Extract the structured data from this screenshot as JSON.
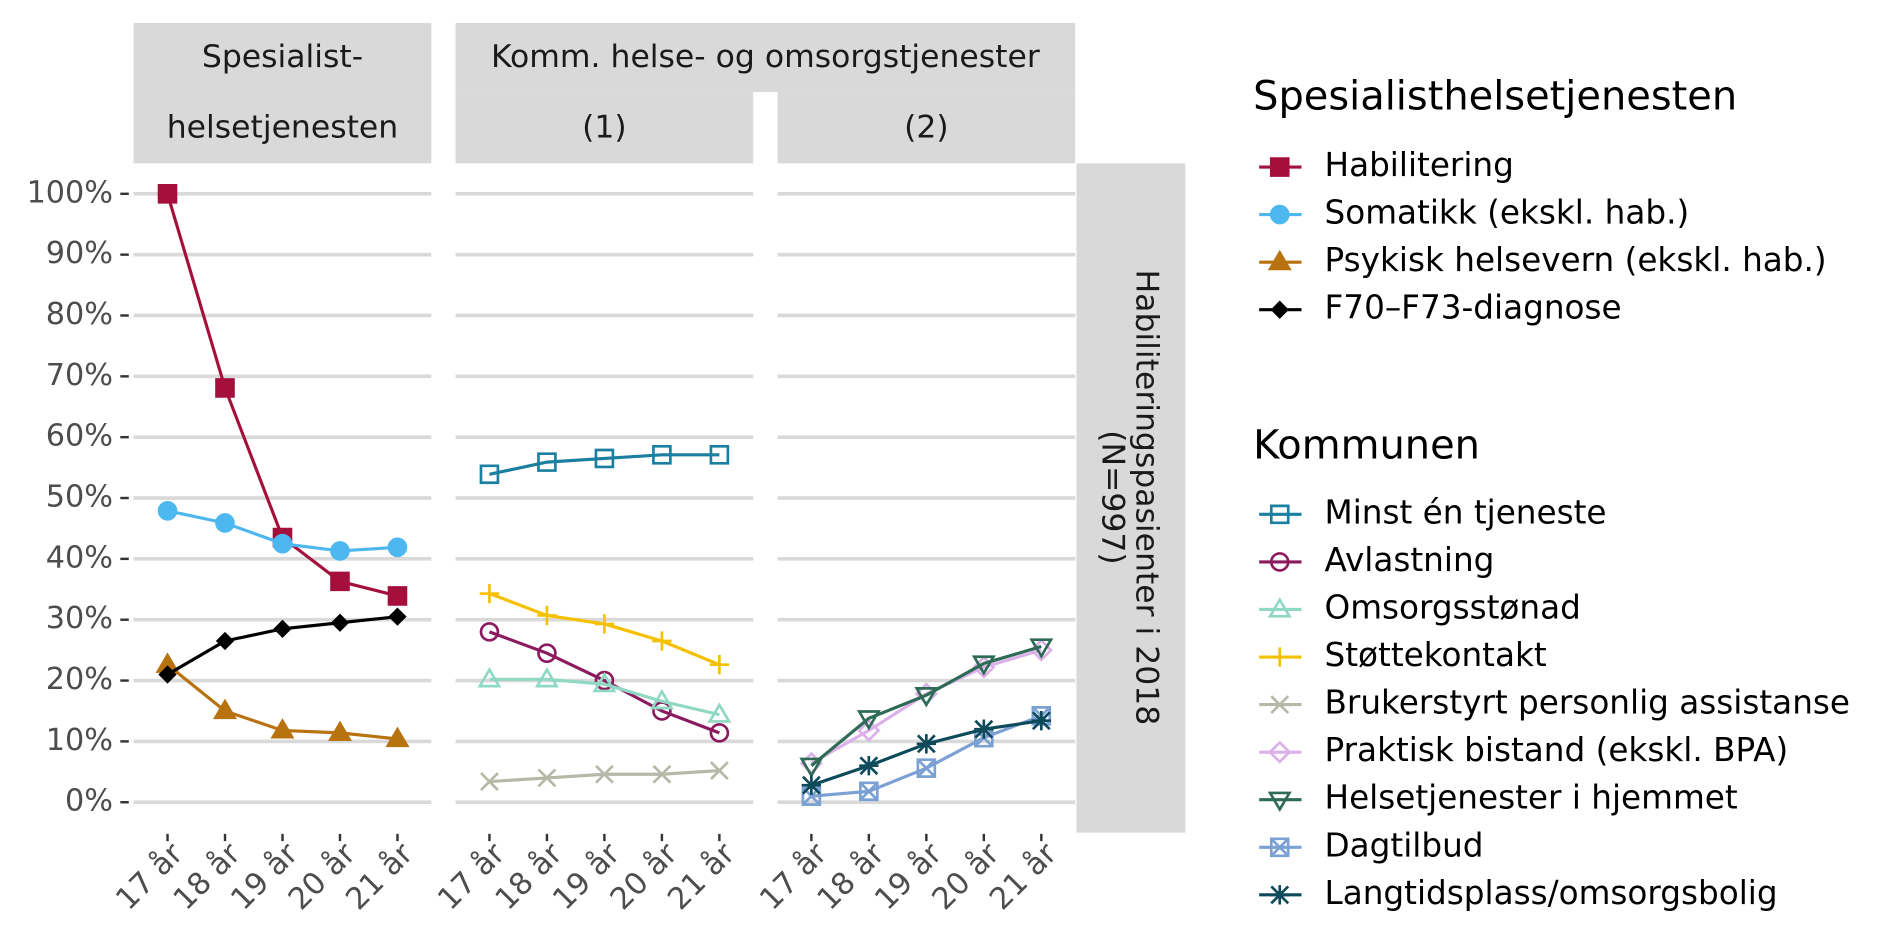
{
  "chart_data": [
    {
      "type": "line",
      "strip": [
        "Spesialist-",
        "helsetjenesten"
      ],
      "legend_title": "Spesialisthelsetjenesten",
      "categories": [
        "17 år",
        "18 år",
        "19 år",
        "20 år",
        "21 år"
      ],
      "ylim": [
        -5,
        105
      ],
      "yticks": [
        {
          "value": 0,
          "label": "0%"
        },
        {
          "value": 10,
          "label": "10%"
        },
        {
          "value": 20,
          "label": "20%"
        },
        {
          "value": 30,
          "label": "30%"
        },
        {
          "value": 40,
          "label": "40%"
        },
        {
          "value": 50,
          "label": "50%"
        },
        {
          "value": 60,
          "label": "60%"
        },
        {
          "value": 70,
          "label": "70%"
        },
        {
          "value": 80,
          "label": "80%"
        },
        {
          "value": 90,
          "label": "90%"
        },
        {
          "value": 100,
          "label": "100%"
        }
      ],
      "grid": true,
      "series": [
        {
          "name": "Habilitering",
          "color": "#a50f3c",
          "marker": "square",
          "values": [
            100,
            68.1,
            43.5,
            36.3,
            33.9
          ]
        },
        {
          "name": "Somatikk (ekskl. hab.)",
          "color": "#4db8f0",
          "marker": "circle",
          "values": [
            47.9,
            45.9,
            42.5,
            41.3,
            41.9
          ]
        },
        {
          "name": "Psykisk helsevern (ekskl. hab.)",
          "color": "#b8720f",
          "marker": "triangle",
          "values": [
            22.6,
            15,
            11.8,
            11.4,
            10.4
          ]
        },
        {
          "name": "F70–F73-diagnose",
          "color": "#000000",
          "marker": "diamond",
          "values": [
            21,
            26.5,
            28.5,
            29.5,
            30.5
          ]
        }
      ]
    },
    {
      "type": "line",
      "strip": "(1)",
      "legend_title": "Kommunen",
      "categories": [
        "17 år",
        "18 år",
        "19 år",
        "20 år",
        "21 år"
      ],
      "series": [
        {
          "name": "Minst én tjeneste",
          "color": "#1a7fa0",
          "marker": "open-square",
          "values": [
            53.9,
            55.9,
            56.5,
            57.1,
            57.1
          ]
        },
        {
          "name": "Avlastning",
          "color": "#8b1a5e",
          "marker": "open-circle",
          "values": [
            28,
            24.5,
            20,
            15,
            11.4
          ]
        },
        {
          "name": "Omsorgsstønad",
          "color": "#8fd8c4",
          "marker": "open-triangle",
          "values": [
            20.2,
            20.2,
            19.4,
            16.6,
            14.4
          ]
        },
        {
          "name": "Støttekontakt",
          "color": "#f5c000",
          "marker": "plus",
          "values": [
            34.3,
            30.7,
            29.3,
            26.5,
            22.6
          ]
        },
        {
          "name": "Brukerstyrt personlig assistanse",
          "color": "#b8b8a8",
          "marker": "cross",
          "values": [
            3.4,
            4,
            4.6,
            4.6,
            5.2
          ]
        }
      ]
    },
    {
      "type": "line",
      "strip": "(2)",
      "categories": [
        "17 år",
        "18 år",
        "19 år",
        "20 år",
        "21 år"
      ],
      "series": [
        {
          "name": "Praktisk bistand (ekskl. BPA)",
          "color": "#dcb0e8",
          "marker": "open-diamond",
          "values": [
            6.4,
            11.8,
            17.8,
            22.2,
            25
          ]
        },
        {
          "name": "Helsetjenester i hjemmet",
          "color": "#2e6b56",
          "marker": "open-down-triangle",
          "values": [
            6,
            13.8,
            17.6,
            22.8,
            25.6
          ]
        },
        {
          "name": "Dagtilbud",
          "color": "#7ba0d4",
          "marker": "square-cross",
          "values": [
            1,
            1.8,
            5.6,
            10.6,
            14.2
          ]
        },
        {
          "name": "Langtidsplass/omsorgsbolig",
          "color": "#0d4a5a",
          "marker": "asterisk",
          "values": [
            2.8,
            6,
            9.6,
            12,
            13.4
          ]
        }
      ]
    }
  ],
  "group_strip": "Komm. helse- og omsorgstjenester",
  "row_strip": [
    "Habiliteringspasienter i 2018",
    "(N=997)"
  ]
}
